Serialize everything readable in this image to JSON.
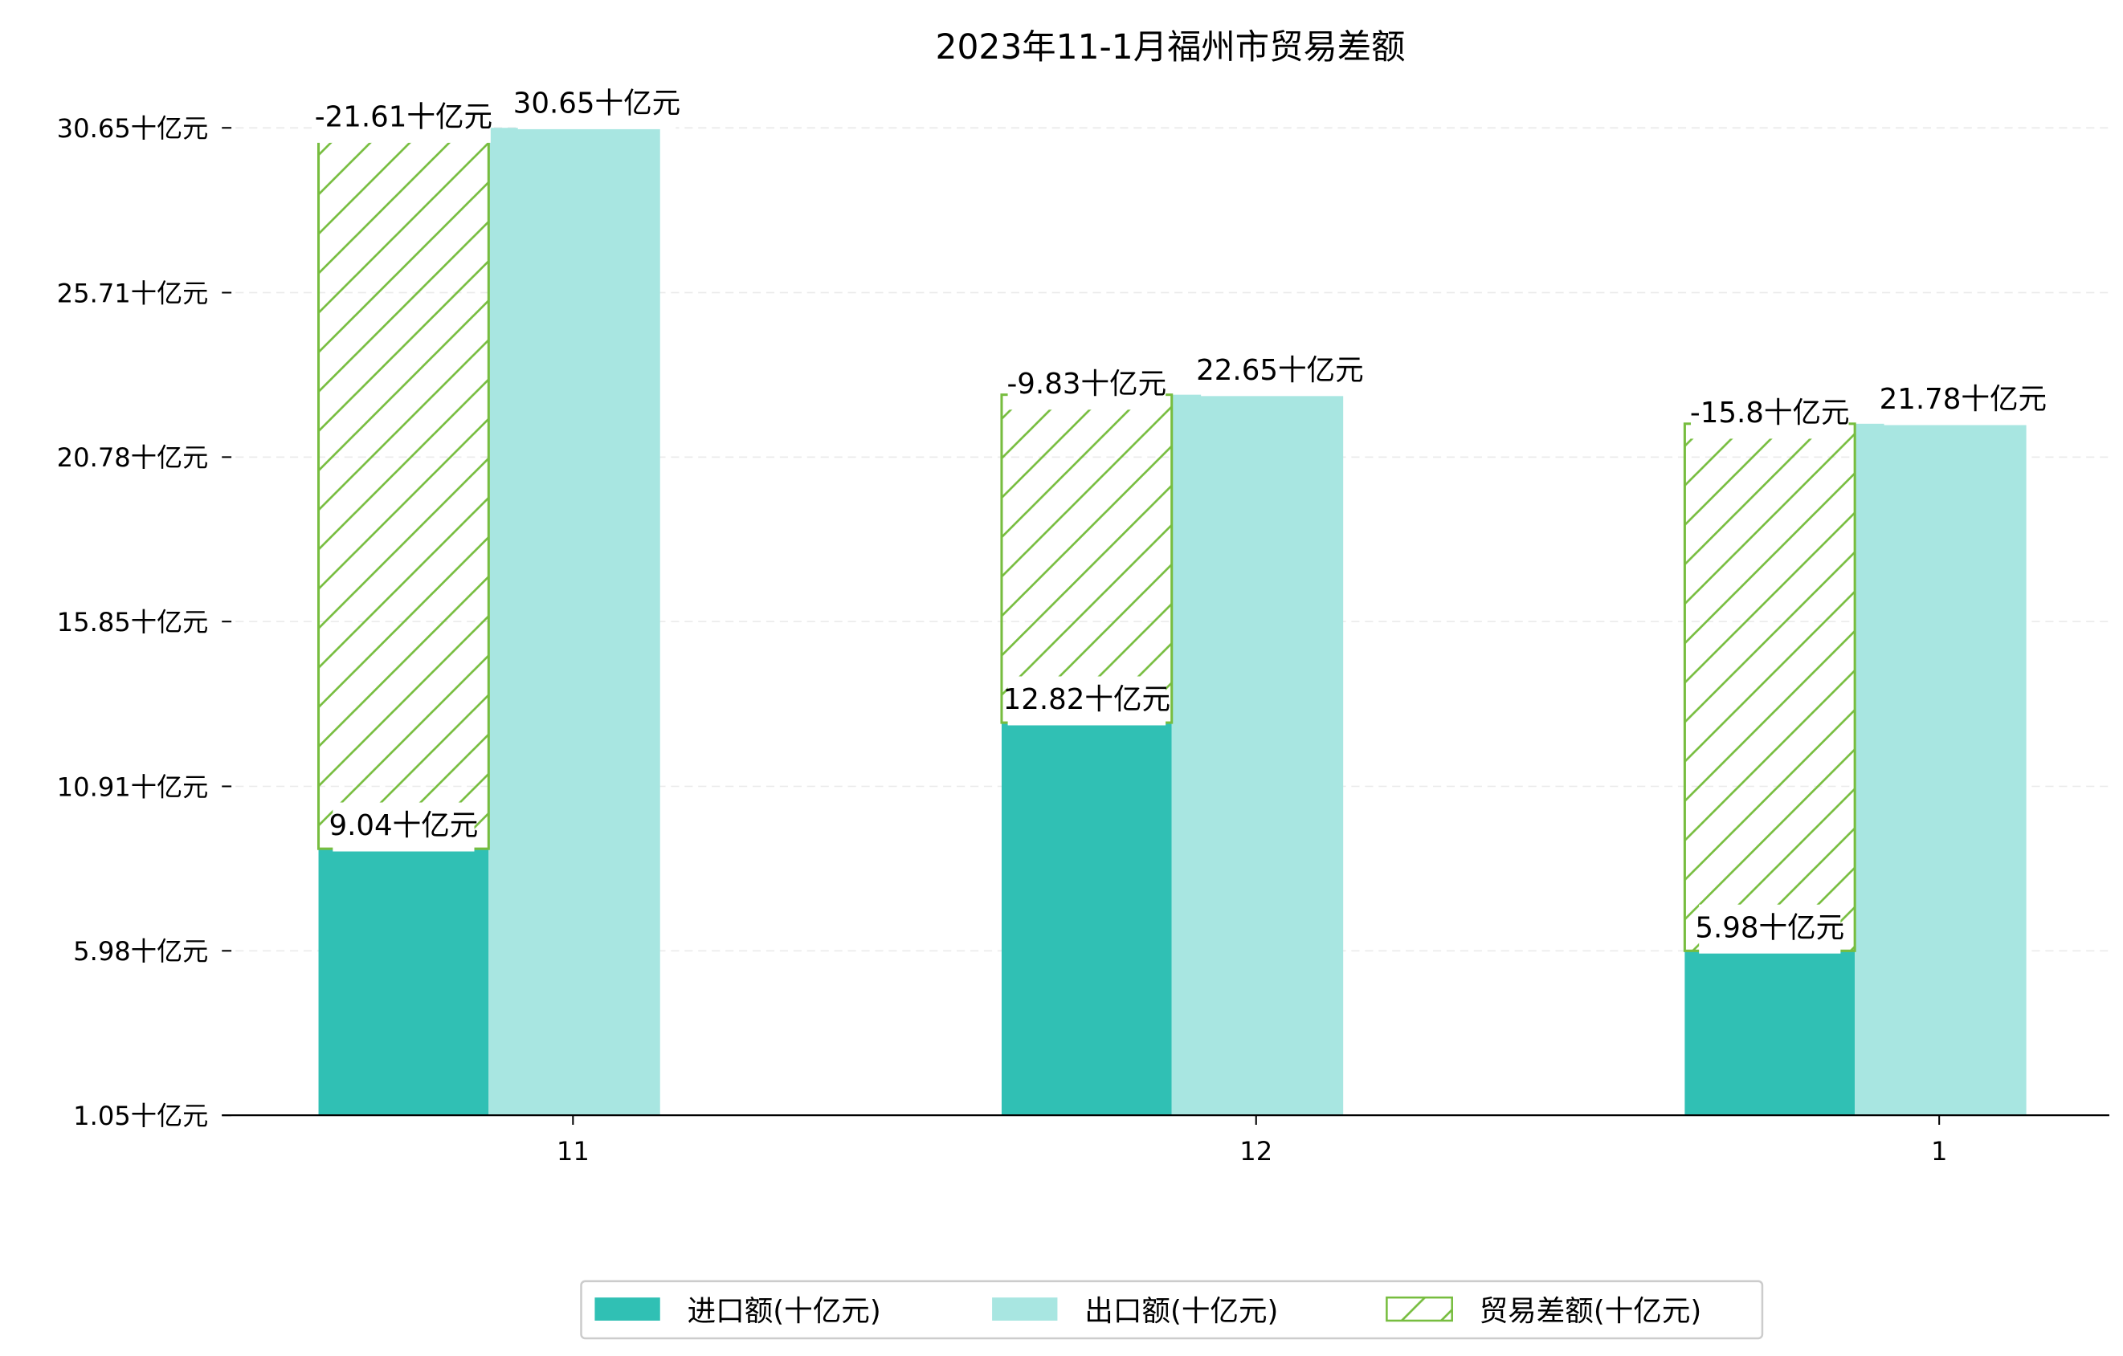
{
  "chart_data": {
    "type": "bar",
    "title": "2023年11-1月福州市贸易差额",
    "categories": [
      "11",
      "12",
      "1"
    ],
    "unit": "十亿元",
    "series": [
      {
        "name": "进口额(十亿元)",
        "values": [
          9.04,
          12.82,
          5.98
        ],
        "color": "#30c0b4",
        "label_texts": [
          "9.04十亿元",
          "12.82十亿元",
          "5.98十亿元"
        ]
      },
      {
        "name": "出口额(十亿元)",
        "values": [
          30.65,
          22.65,
          21.78
        ],
        "color": "#a8e6e1",
        "label_texts": [
          "30.65十亿元",
          "22.65十亿元",
          "21.78十亿元"
        ]
      },
      {
        "name": "贸易差额(十亿元)",
        "values": [
          -21.61,
          -9.83,
          -15.8
        ],
        "color": "#77bd3f",
        "hatch": true,
        "label_texts": [
          "-21.61十亿元",
          "-9.83十亿元",
          "-15.8十亿元"
        ]
      }
    ],
    "yticks": [
      1.05,
      5.98,
      10.91,
      15.85,
      20.78,
      25.71,
      30.65
    ],
    "ytick_labels": [
      "1.05十亿元",
      "5.98十亿元",
      "10.91十亿元",
      "15.85十亿元",
      "20.78十亿元",
      "25.71十亿元",
      "30.65十亿元"
    ],
    "ylim": [
      1.05,
      31.2
    ],
    "xlabel": "",
    "ylabel": "",
    "grid": "horizontal dashed",
    "legend_position": "bottom-center"
  }
}
